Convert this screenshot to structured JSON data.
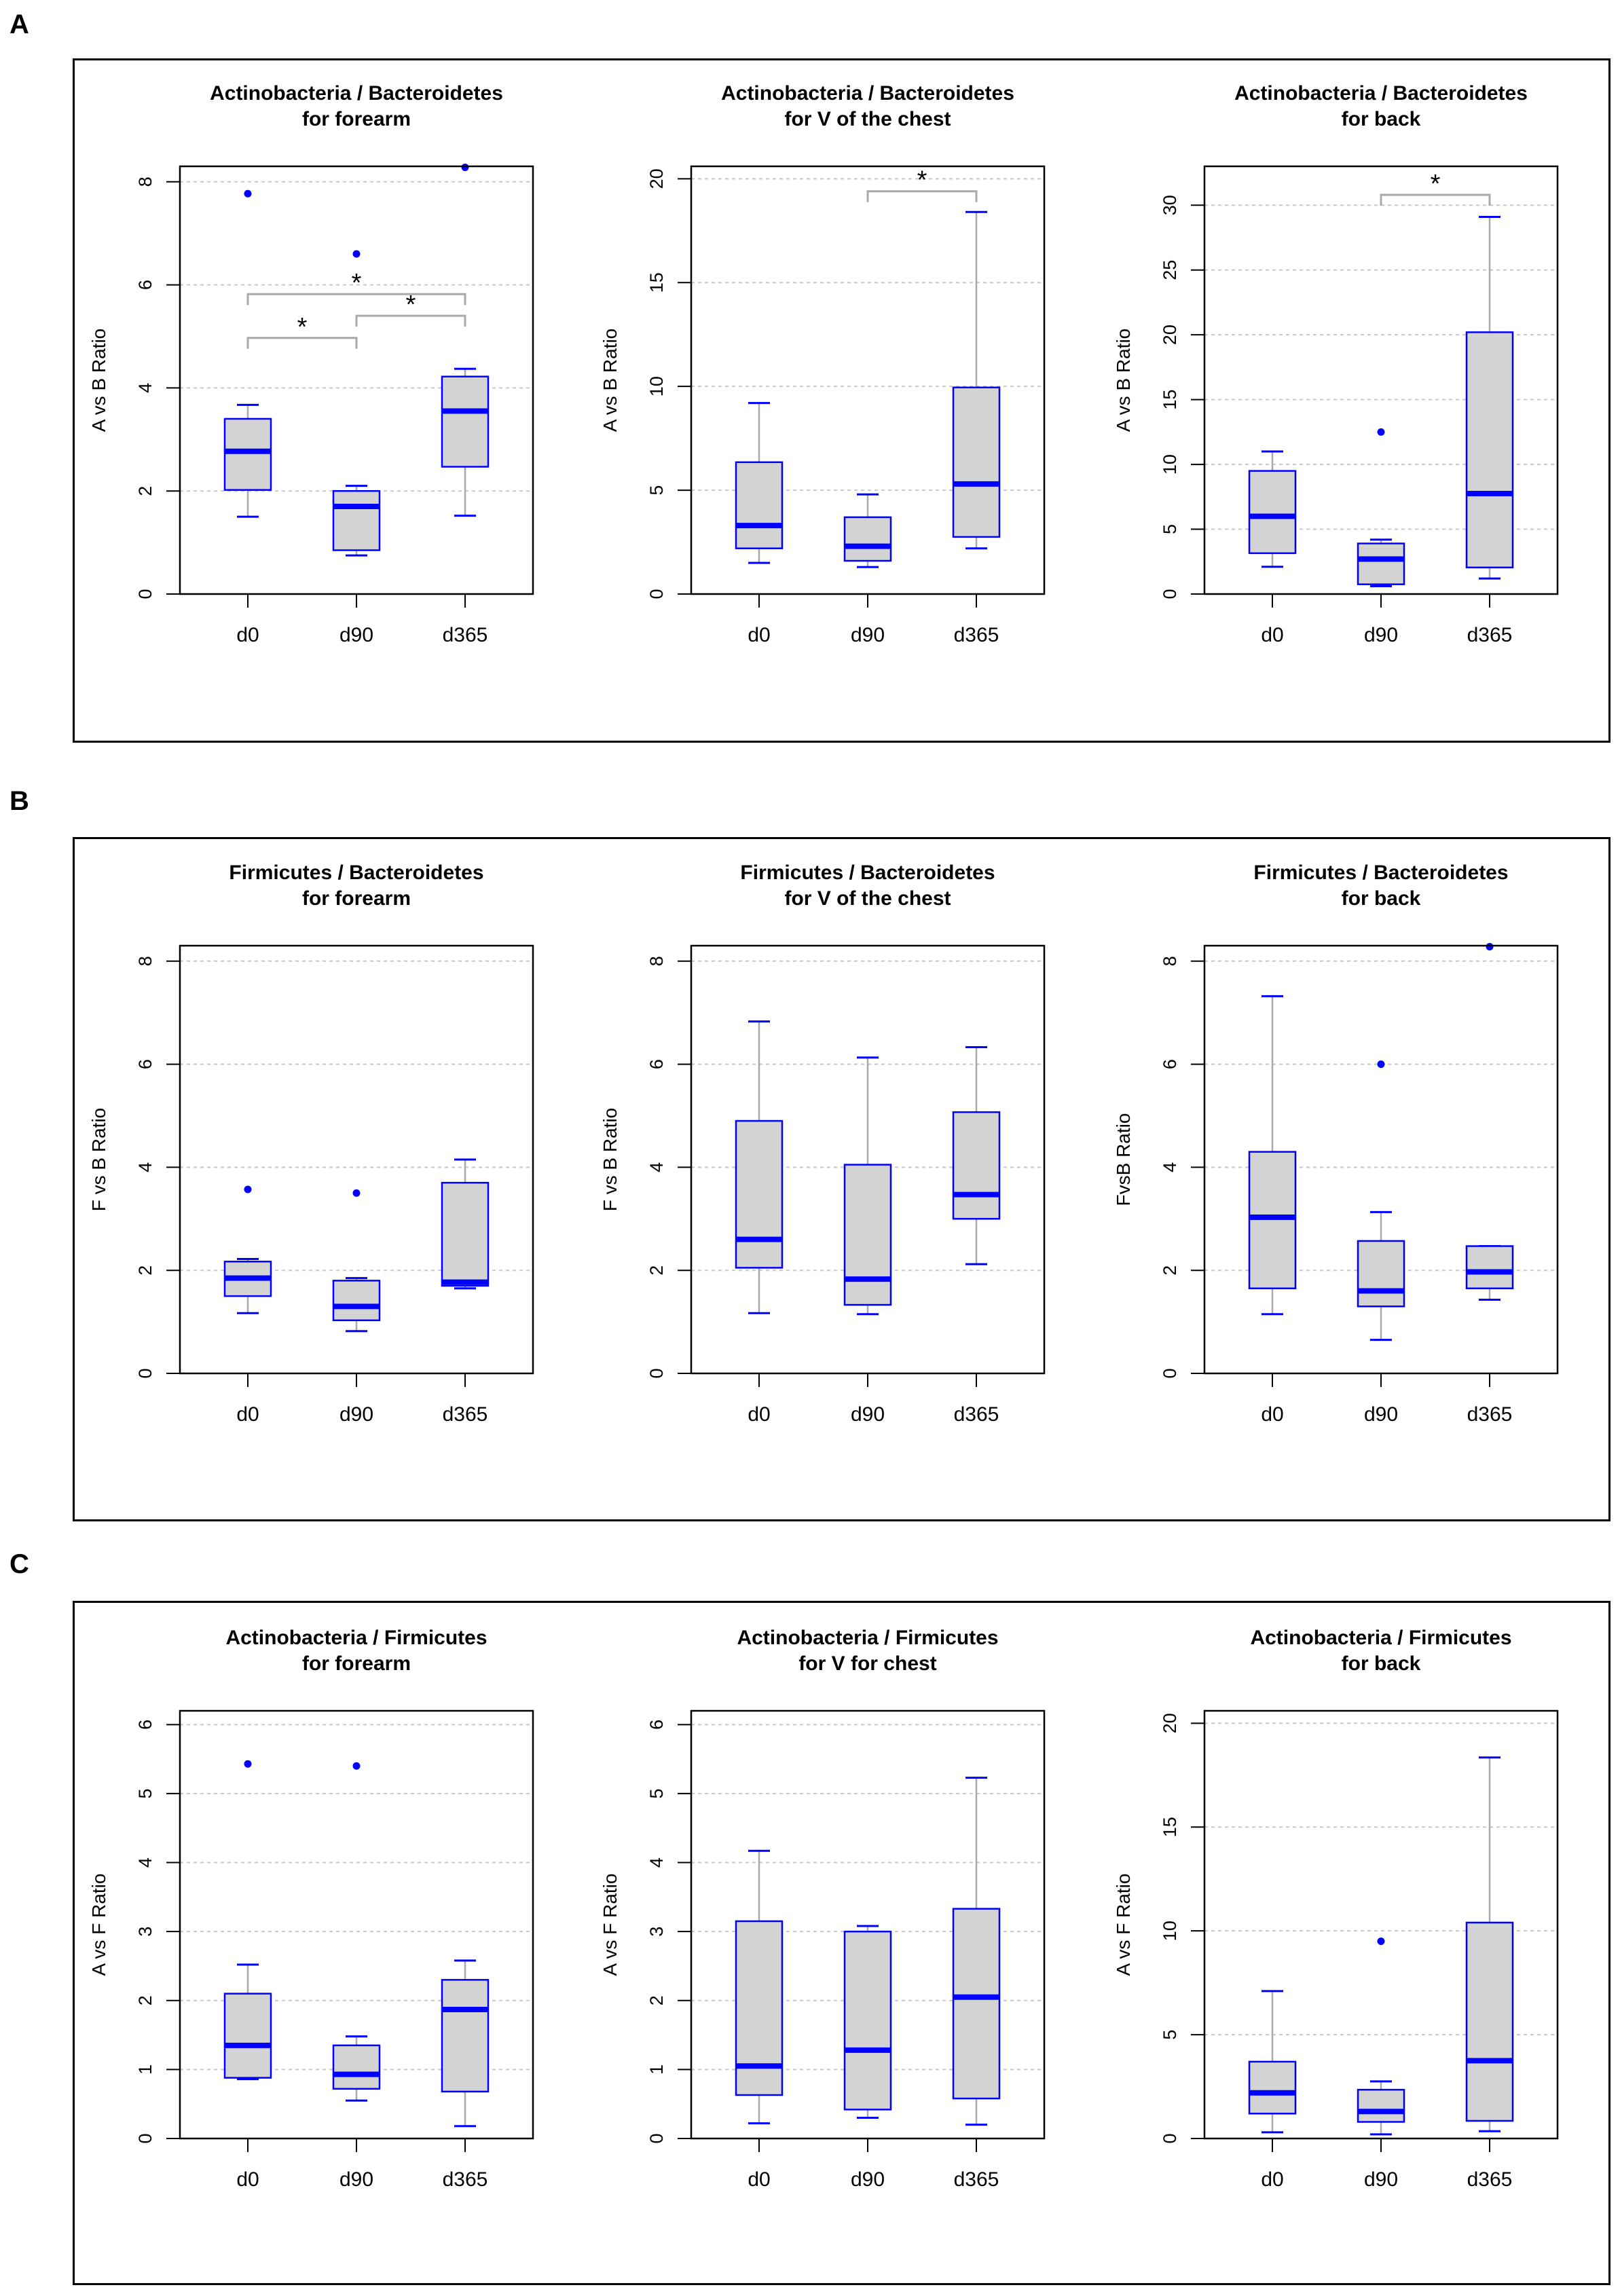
{
  "colors": {
    "box_fill": "#d3d3d3",
    "box_border": "#0000ff",
    "median": "#0000ff",
    "whisker": "#a9a9a9",
    "cap": "#0000ff",
    "outlier": "#0000ff",
    "grid": "#c8c8c8",
    "bracket": "#a9a9a9"
  },
  "panels": [
    {
      "label": "A"
    },
    {
      "label": "B"
    },
    {
      "label": "C"
    }
  ],
  "chart_data": [
    {
      "type": "box",
      "panel": "A",
      "title": [
        "Actinobacteria / Bacteroidetes",
        "for forearm"
      ],
      "ylabel": "A vs B Ratio",
      "ylim": [
        0,
        8.3
      ],
      "yticks": [
        0,
        2,
        4,
        6,
        8
      ],
      "categories": [
        "d0",
        "d90",
        "d365"
      ],
      "boxes": [
        {
          "whisker_low": 1.5,
          "q1": 2.02,
          "median": 2.77,
          "q3": 3.4,
          "whisker_high": 3.67,
          "outliers": [
            7.77
          ]
        },
        {
          "whisker_low": 0.75,
          "q1": 0.85,
          "median": 1.7,
          "q3": 2.0,
          "whisker_high": 2.1,
          "outliers": [
            6.6
          ]
        },
        {
          "whisker_low": 1.52,
          "q1": 2.47,
          "median": 3.55,
          "q3": 4.22,
          "whisker_high": 4.37,
          "outliers": [
            8.28
          ]
        }
      ],
      "significance": [
        {
          "from": 0,
          "to": 1,
          "y": 4.97,
          "label": "*"
        },
        {
          "from": 1,
          "to": 2,
          "y": 5.4,
          "label": "*"
        },
        {
          "from": 0,
          "to": 2,
          "y": 5.82,
          "label": "*"
        }
      ]
    },
    {
      "type": "box",
      "panel": "A",
      "title": [
        "Actinobacteria / Bacteroidetes",
        "for V of the chest"
      ],
      "ylabel": "A vs B Ratio",
      "ylim": [
        0,
        20.6
      ],
      "yticks": [
        0,
        5,
        10,
        15,
        20
      ],
      "categories": [
        "d0",
        "d90",
        "d365"
      ],
      "boxes": [
        {
          "whisker_low": 1.5,
          "q1": 2.2,
          "median": 3.3,
          "q3": 6.35,
          "whisker_high": 9.2,
          "outliers": []
        },
        {
          "whisker_low": 1.3,
          "q1": 1.6,
          "median": 2.3,
          "q3": 3.7,
          "whisker_high": 4.8,
          "outliers": []
        },
        {
          "whisker_low": 2.2,
          "q1": 2.75,
          "median": 5.3,
          "q3": 9.95,
          "whisker_high": 18.4,
          "outliers": []
        }
      ],
      "significance": [
        {
          "from": 1,
          "to": 2,
          "y": 19.4,
          "label": "*"
        }
      ]
    },
    {
      "type": "box",
      "panel": "A",
      "title": [
        "Actinobacteria / Bacteroidetes",
        "for back"
      ],
      "ylabel": "A vs B Ratio",
      "ylim": [
        0,
        33
      ],
      "yticks": [
        0,
        5,
        10,
        15,
        20,
        25,
        30
      ],
      "categories": [
        "d0",
        "d90",
        "d365"
      ],
      "boxes": [
        {
          "whisker_low": 2.1,
          "q1": 3.15,
          "median": 6.0,
          "q3": 9.5,
          "whisker_high": 11.0,
          "outliers": []
        },
        {
          "whisker_low": 0.6,
          "q1": 0.75,
          "median": 2.7,
          "q3": 3.9,
          "whisker_high": 4.2,
          "outliers": [
            12.5
          ]
        },
        {
          "whisker_low": 1.2,
          "q1": 2.05,
          "median": 7.75,
          "q3": 20.2,
          "whisker_high": 29.1,
          "outliers": []
        }
      ],
      "significance": [
        {
          "from": 1,
          "to": 2,
          "y": 30.8,
          "label": "*"
        }
      ]
    },
    {
      "type": "box",
      "panel": "B",
      "title": [
        "Firmicutes / Bacteroidetes",
        "for forearm"
      ],
      "ylabel": "F vs B Ratio",
      "ylim": [
        0,
        8.3
      ],
      "yticks": [
        0,
        2,
        4,
        6,
        8
      ],
      "categories": [
        "d0",
        "d90",
        "d365"
      ],
      "boxes": [
        {
          "whisker_low": 1.17,
          "q1": 1.5,
          "median": 1.85,
          "q3": 2.17,
          "whisker_high": 2.22,
          "outliers": [
            3.57
          ]
        },
        {
          "whisker_low": 0.82,
          "q1": 1.03,
          "median": 1.3,
          "q3": 1.8,
          "whisker_high": 1.85,
          "outliers": [
            3.5
          ]
        },
        {
          "whisker_low": 1.65,
          "q1": 1.7,
          "median": 1.77,
          "q3": 3.7,
          "whisker_high": 4.15,
          "outliers": []
        }
      ],
      "significance": []
    },
    {
      "type": "box",
      "panel": "B",
      "title": [
        "Firmicutes / Bacteroidetes",
        "for V of the chest"
      ],
      "ylabel": "F vs B Ratio",
      "ylim": [
        0,
        8.3
      ],
      "yticks": [
        0,
        2,
        4,
        6,
        8
      ],
      "categories": [
        "d0",
        "d90",
        "d365"
      ],
      "boxes": [
        {
          "whisker_low": 1.17,
          "q1": 2.05,
          "median": 2.6,
          "q3": 4.9,
          "whisker_high": 6.83,
          "outliers": []
        },
        {
          "whisker_low": 1.15,
          "q1": 1.33,
          "median": 1.83,
          "q3": 4.05,
          "whisker_high": 6.13,
          "outliers": []
        },
        {
          "whisker_low": 2.12,
          "q1": 3.0,
          "median": 3.47,
          "q3": 5.07,
          "whisker_high": 6.33,
          "outliers": []
        }
      ],
      "significance": []
    },
    {
      "type": "box",
      "panel": "B",
      "title": [
        "Firmicutes / Bacteroidetes",
        "for back"
      ],
      "ylabel": "FvsB Ratio",
      "ylim": [
        0,
        8.3
      ],
      "yticks": [
        0,
        2,
        4,
        6,
        8
      ],
      "categories": [
        "d0",
        "d90",
        "d365"
      ],
      "boxes": [
        {
          "whisker_low": 1.15,
          "q1": 1.65,
          "median": 3.03,
          "q3": 4.3,
          "whisker_high": 7.32,
          "outliers": []
        },
        {
          "whisker_low": 0.65,
          "q1": 1.3,
          "median": 1.6,
          "q3": 2.57,
          "whisker_high": 3.13,
          "outliers": [
            6.0
          ]
        },
        {
          "whisker_low": 1.43,
          "q1": 1.65,
          "median": 1.97,
          "q3": 2.47,
          "whisker_high": 2.47,
          "outliers": [
            8.28
          ]
        }
      ],
      "significance": []
    },
    {
      "type": "box",
      "panel": "C",
      "title": [
        "Actinobacteria / Firmicutes",
        "for forearm"
      ],
      "ylabel": "A vs F Ratio",
      "ylim": [
        0,
        6.2
      ],
      "yticks": [
        0,
        1,
        2,
        3,
        4,
        5,
        6
      ],
      "categories": [
        "d0",
        "d90",
        "d365"
      ],
      "boxes": [
        {
          "whisker_low": 0.86,
          "q1": 0.88,
          "median": 1.35,
          "q3": 2.1,
          "whisker_high": 2.52,
          "outliers": [
            5.43
          ]
        },
        {
          "whisker_low": 0.55,
          "q1": 0.72,
          "median": 0.93,
          "q3": 1.35,
          "whisker_high": 1.48,
          "outliers": [
            5.4
          ]
        },
        {
          "whisker_low": 0.18,
          "q1": 0.68,
          "median": 1.87,
          "q3": 2.3,
          "whisker_high": 2.58,
          "outliers": []
        }
      ],
      "significance": []
    },
    {
      "type": "box",
      "panel": "C",
      "title": [
        "Actinobacteria / Firmicutes",
        "for V for chest"
      ],
      "ylabel": "A vs F Ratio",
      "ylim": [
        0,
        6.2
      ],
      "yticks": [
        0,
        1,
        2,
        3,
        4,
        5,
        6
      ],
      "categories": [
        "d0",
        "d90",
        "d365"
      ],
      "boxes": [
        {
          "whisker_low": 0.22,
          "q1": 0.63,
          "median": 1.05,
          "q3": 3.15,
          "whisker_high": 4.17,
          "outliers": []
        },
        {
          "whisker_low": 0.3,
          "q1": 0.42,
          "median": 1.28,
          "q3": 3.0,
          "whisker_high": 3.08,
          "outliers": []
        },
        {
          "whisker_low": 0.2,
          "q1": 0.58,
          "median": 2.05,
          "q3": 3.33,
          "whisker_high": 5.23,
          "outliers": []
        }
      ],
      "significance": []
    },
    {
      "type": "box",
      "panel": "C",
      "title": [
        "Actinobacteria / Firmicutes",
        "for back"
      ],
      "ylabel": "A vs F Ratio",
      "ylim": [
        0,
        20.6
      ],
      "yticks": [
        0,
        5,
        10,
        15,
        20
      ],
      "categories": [
        "d0",
        "d90",
        "d365"
      ],
      "boxes": [
        {
          "whisker_low": 0.3,
          "q1": 1.2,
          "median": 2.2,
          "q3": 3.7,
          "whisker_high": 7.1,
          "outliers": []
        },
        {
          "whisker_low": 0.2,
          "q1": 0.8,
          "median": 1.3,
          "q3": 2.35,
          "whisker_high": 2.75,
          "outliers": [
            9.5
          ]
        },
        {
          "whisker_low": 0.35,
          "q1": 0.85,
          "median": 3.75,
          "q3": 10.4,
          "whisker_high": 18.35,
          "outliers": []
        }
      ],
      "significance": []
    }
  ]
}
